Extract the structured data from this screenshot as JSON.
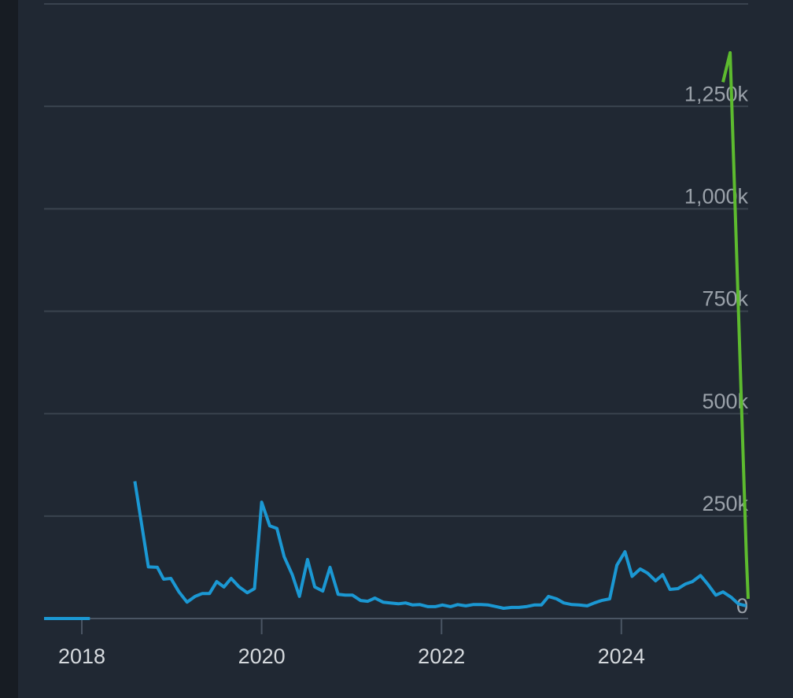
{
  "chart_data": {
    "type": "line",
    "xlim": [
      2017.58,
      2025.41
    ],
    "xticks": [
      2018,
      2020,
      2022,
      2024
    ],
    "ylim": [
      0,
      1500000
    ],
    "yticks": [
      0,
      {
        "value": 250000,
        "label": "250k"
      },
      {
        "value": 500000,
        "label": "500k"
      },
      {
        "value": 750000,
        "label": "750k"
      },
      {
        "value": 1000000,
        "label": "1,000k"
      },
      {
        "value": 1250000,
        "label": "1,250k"
      }
    ],
    "grid": true,
    "series": [
      {
        "color": "#1b98d3",
        "x": [
          2017.58,
          2018.09,
          2018.3,
          2018.59,
          2018.74,
          2018.84,
          2018.91,
          2018.99,
          2019.08,
          2019.17,
          2019.26,
          2019.34,
          2019.42,
          2019.5,
          2019.58,
          2019.66,
          2019.75,
          2019.84,
          2019.92,
          2020.0,
          2020.09,
          2020.17,
          2020.25,
          2020.34,
          2020.42,
          2020.51,
          2020.59,
          2020.68,
          2020.76,
          2020.85,
          2020.93,
          2021.01,
          2021.1,
          2021.18,
          2021.26,
          2021.35,
          2021.43,
          2021.52,
          2021.6,
          2021.68,
          2021.76,
          2021.85,
          2021.93,
          2022.01,
          2022.1,
          2022.18,
          2022.27,
          2022.35,
          2022.44,
          2022.52,
          2022.61,
          2022.69,
          2022.78,
          2022.86,
          2022.94,
          2023.03,
          2023.11,
          2023.19,
          2023.28,
          2023.36,
          2023.45,
          2023.53,
          2023.62,
          2023.7,
          2023.78,
          2023.87,
          2023.95,
          2024.04,
          2024.12,
          2024.21,
          2024.29,
          2024.38,
          2024.46,
          2024.54,
          2024.63,
          2024.71,
          2024.79,
          2024.88,
          2024.96,
          2025.05,
          2025.13,
          2025.22,
          2025.3,
          2025.39
        ],
        "values": [
          0,
          0,
          null,
          335000,
          126000,
          125000,
          96000,
          98000,
          65000,
          40000,
          54000,
          61000,
          61000,
          90000,
          77000,
          98000,
          77000,
          63000,
          73000,
          284000,
          226000,
          220000,
          151000,
          107000,
          54000,
          144000,
          77000,
          67000,
          125000,
          59000,
          57000,
          57000,
          44000,
          42000,
          50000,
          40000,
          38000,
          36000,
          38000,
          33000,
          34000,
          29000,
          29000,
          33000,
          29000,
          34000,
          31000,
          34000,
          34000,
          33000,
          29000,
          25000,
          27000,
          27000,
          29000,
          33000,
          33000,
          54000,
          48000,
          38000,
          34000,
          33000,
          31000,
          38000,
          44000,
          48000,
          130000,
          163000,
          103000,
          121000,
          111000,
          92000,
          107000,
          71000,
          73000,
          84000,
          90000,
          105000,
          84000,
          57000,
          65000,
          52000,
          36000,
          31000
        ]
      },
      {
        "color": "#5dbb2f",
        "x": [
          2025.13,
          2025.21,
          2025.39,
          2025.41
        ],
        "values": [
          1309000,
          1381000,
          153000,
          48000
        ]
      }
    ]
  }
}
